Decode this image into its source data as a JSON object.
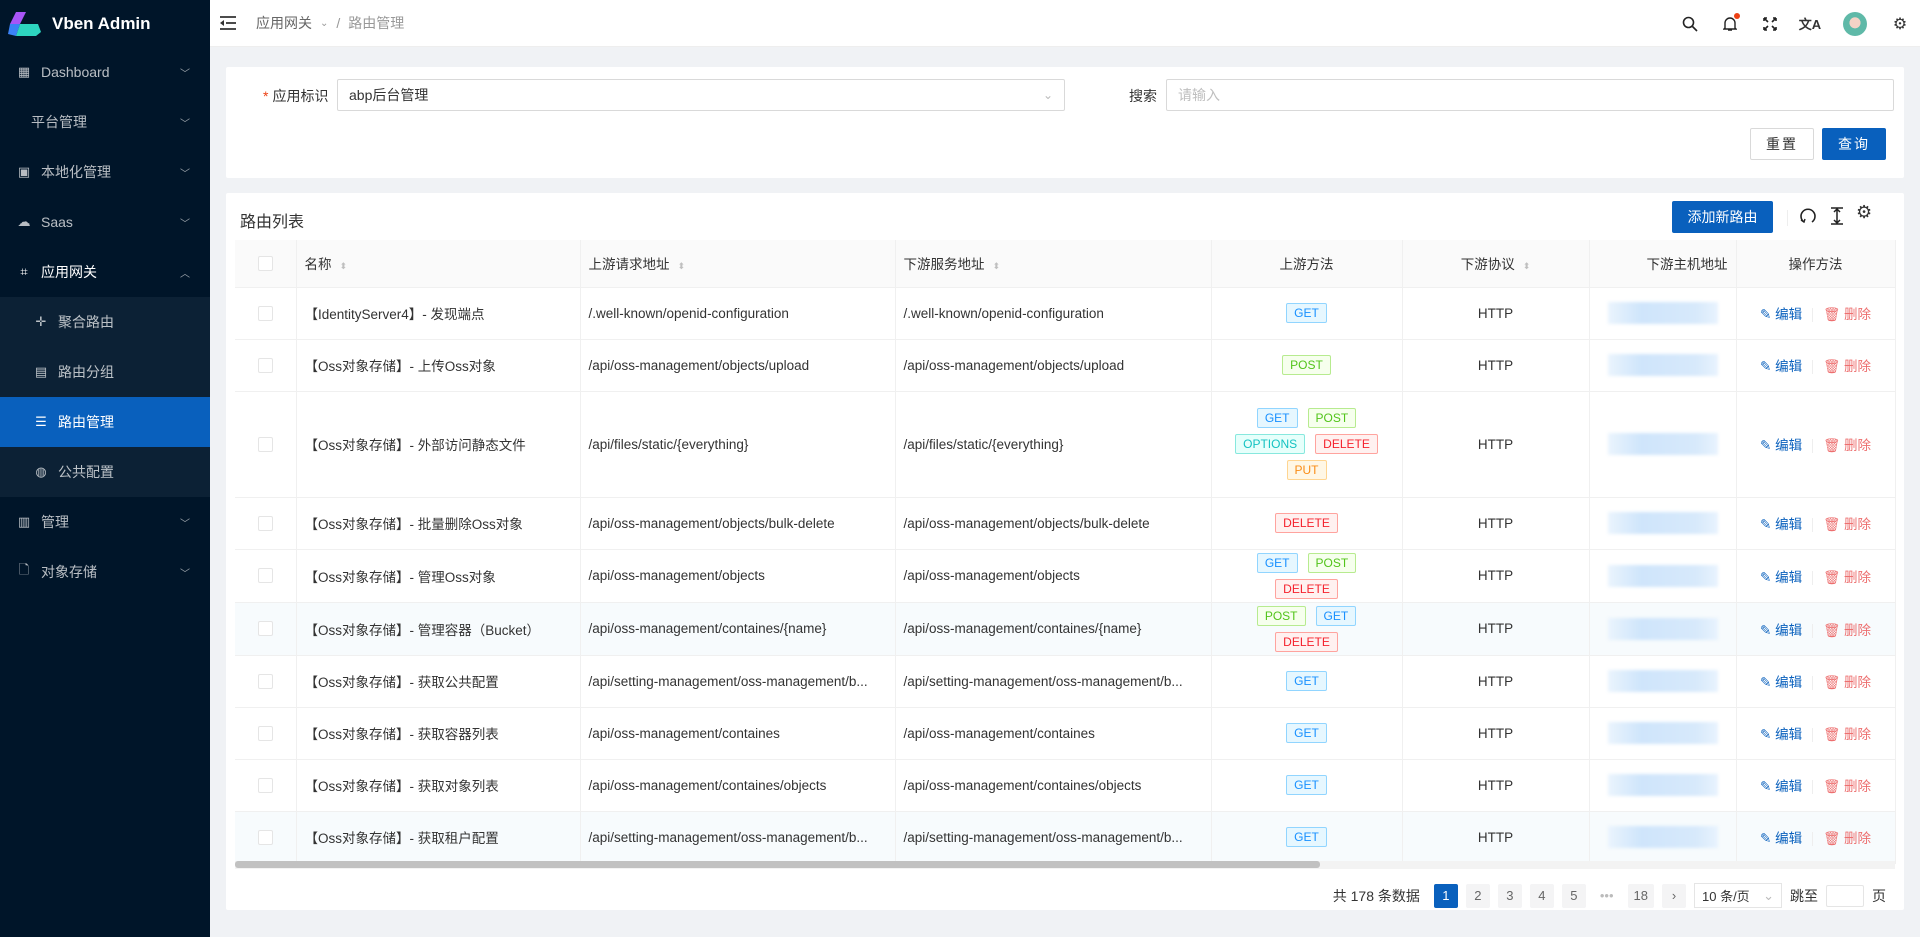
{
  "app": {
    "title": "Vben Admin"
  },
  "sidebar": {
    "items": [
      {
        "label": "Dashboard",
        "icon": "dashboard-grid-icon"
      },
      {
        "label": "平台管理",
        "icon": ""
      },
      {
        "label": "本地化管理",
        "icon": "localization-icon"
      },
      {
        "label": "Saas",
        "icon": "cloud-icon"
      },
      {
        "label": "应用网关",
        "icon": "gateway-icon",
        "open": true,
        "children": [
          {
            "label": "聚合路由",
            "icon": "move-icon"
          },
          {
            "label": "路由分组",
            "icon": "group-icon"
          },
          {
            "label": "路由管理",
            "icon": "list-icon",
            "active": true
          },
          {
            "label": "公共配置",
            "icon": "globe-icon"
          }
        ]
      },
      {
        "label": "管理",
        "icon": "control-icon"
      },
      {
        "label": "对象存储",
        "icon": "file-icon"
      }
    ]
  },
  "header": {
    "breadcrumb": [
      "应用网关",
      "路由管理"
    ],
    "icons": [
      "search-icon",
      "bell-icon",
      "fullscreen-icon",
      "translate-icon",
      "avatar",
      "settings-icon"
    ],
    "notification_dot": true
  },
  "search": {
    "app_label": "应用标识",
    "app_value": "abp后台管理",
    "search_label": "搜索",
    "search_placeholder": "请输入",
    "reset_label": "重置",
    "query_label": "查询"
  },
  "table": {
    "title": "路由列表",
    "add_label": "添加新路由",
    "columns": [
      "名称",
      "上游请求地址",
      "下游服务地址",
      "上游方法",
      "下游协议",
      "下游主机地址",
      "操作方法"
    ],
    "edit_label": "编辑",
    "delete_label": "删除",
    "rows": [
      {
        "name": "【IdentityServer4】- 发现端点",
        "upstream": "/.well-known/openid-configuration",
        "downstream": "/.well-known/openid-configuration",
        "methods": [
          "GET"
        ],
        "protocol": "HTTP"
      },
      {
        "name": "【Oss对象存储】- 上传Oss对象",
        "upstream": "/api/oss-management/objects/upload",
        "downstream": "/api/oss-management/objects/upload",
        "methods": [
          "POST"
        ],
        "protocol": "HTTP"
      },
      {
        "name": "【Oss对象存储】- 外部访问静态文件",
        "upstream": "/api/files/static/{everything}",
        "downstream": "/api/files/static/{everything}",
        "methods": [
          "GET",
          "POST",
          "OPTIONS",
          "DELETE",
          "PUT"
        ],
        "protocol": "HTTP"
      },
      {
        "name": "【Oss对象存储】- 批量删除Oss对象",
        "upstream": "/api/oss-management/objects/bulk-delete",
        "downstream": "/api/oss-management/objects/bulk-delete",
        "methods": [
          "DELETE"
        ],
        "protocol": "HTTP"
      },
      {
        "name": "【Oss对象存储】- 管理Oss对象",
        "upstream": "/api/oss-management/objects",
        "downstream": "/api/oss-management/objects",
        "methods": [
          "GET",
          "POST",
          "DELETE"
        ],
        "protocol": "HTTP"
      },
      {
        "name": "【Oss对象存储】- 管理容器（Bucket）",
        "upstream": "/api/oss-management/containes/{name}",
        "downstream": "/api/oss-management/containes/{name}",
        "methods": [
          "POST",
          "GET",
          "DELETE"
        ],
        "protocol": "HTTP"
      },
      {
        "name": "【Oss对象存储】- 获取公共配置",
        "upstream": "/api/setting-management/oss-management/b...",
        "downstream": "/api/setting-management/oss-management/b...",
        "methods": [
          "GET"
        ],
        "protocol": "HTTP"
      },
      {
        "name": "【Oss对象存储】- 获取容器列表",
        "upstream": "/api/oss-management/containes",
        "downstream": "/api/oss-management/containes",
        "methods": [
          "GET"
        ],
        "protocol": "HTTP"
      },
      {
        "name": "【Oss对象存储】- 获取对象列表",
        "upstream": "/api/oss-management/containes/objects",
        "downstream": "/api/oss-management/containes/objects",
        "methods": [
          "GET"
        ],
        "protocol": "HTTP"
      },
      {
        "name": "【Oss对象存储】- 获取租户配置",
        "upstream": "/api/setting-management/oss-management/b...",
        "downstream": "/api/setting-management/oss-management/b...",
        "methods": [
          "GET"
        ],
        "protocol": "HTTP"
      }
    ]
  },
  "pagination": {
    "total_text": "共 178 条数据",
    "pages": [
      "1",
      "2",
      "3",
      "4",
      "5",
      "•••",
      "18"
    ],
    "current": "1",
    "page_size": "10 条/页",
    "jump_label": "跳至",
    "page_suffix": "页"
  },
  "colors": {
    "primary": "#0960bd",
    "sidebar": "#001529",
    "danger": "#ed6f6f"
  }
}
